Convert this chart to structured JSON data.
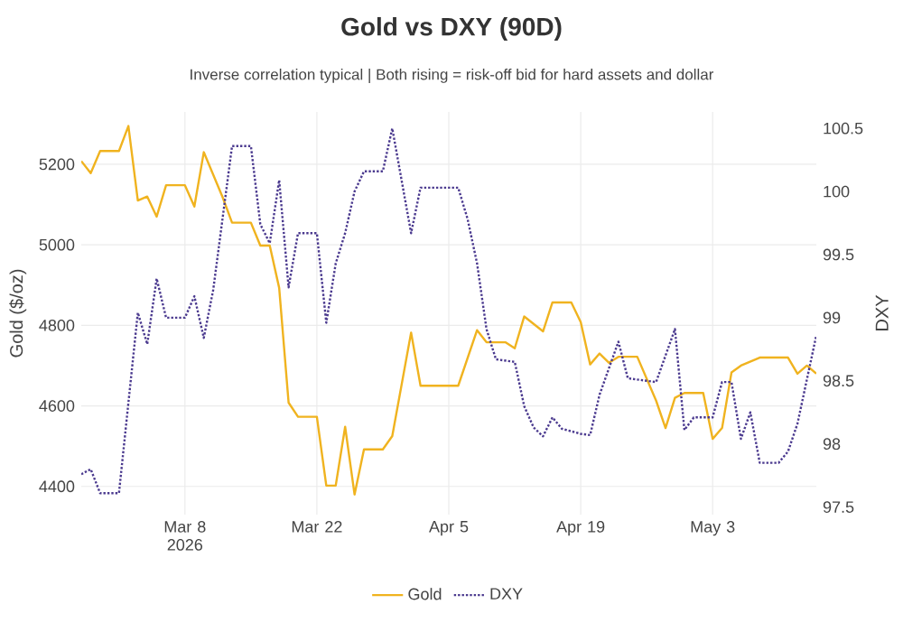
{
  "chart_data": {
    "type": "line",
    "title": "Gold vs DXY (90D)",
    "subtitle": "Inverse correlation typical | Both rising = risk-off bid for hard assets and dollar",
    "ylabel": "Gold ($/oz)",
    "y2label": "DXY",
    "xlim": [
      "2026-02-25",
      "2026-05-14"
    ],
    "xticks": [
      {
        "value": "2026-03-08",
        "label": "Mar 8 2026"
      },
      {
        "value": "2026-03-22",
        "label": "Mar 22"
      },
      {
        "value": "2026-04-05",
        "label": "Apr 5"
      },
      {
        "value": "2026-04-19",
        "label": "Apr 19"
      },
      {
        "value": "2026-05-03",
        "label": "May 3"
      }
    ],
    "ylim": [
      4330,
      5330
    ],
    "yticks": [
      4400,
      4600,
      4800,
      5000,
      5200
    ],
    "y2lim": [
      97.44,
      100.63
    ],
    "y2ticks": [
      97.5,
      98,
      98.5,
      99,
      99.5,
      100,
      100.5
    ],
    "grid": true,
    "legend": "bottom",
    "series": [
      {
        "name": "Gold",
        "color": "#f0b31f",
        "line_style": "solid",
        "x": [
          "2026-02-25",
          "2026-02-26",
          "2026-02-27",
          "2026-03-01",
          "2026-03-02",
          "2026-03-03",
          "2026-03-04",
          "2026-03-05",
          "2026-03-06",
          "2026-03-08",
          "2026-03-09",
          "2026-03-10",
          "2026-03-12",
          "2026-03-13",
          "2026-03-15",
          "2026-03-16",
          "2026-03-17",
          "2026-03-18",
          "2026-03-19",
          "2026-03-20",
          "2026-03-22",
          "2026-03-23",
          "2026-03-24",
          "2026-03-25",
          "2026-03-26",
          "2026-03-27",
          "2026-03-29",
          "2026-03-30",
          "2026-04-01",
          "2026-04-02",
          "2026-04-06",
          "2026-04-08",
          "2026-04-09",
          "2026-04-11",
          "2026-04-12",
          "2026-04-13",
          "2026-04-15",
          "2026-04-16",
          "2026-04-18",
          "2026-04-19",
          "2026-04-20",
          "2026-04-21",
          "2026-04-22",
          "2026-04-23",
          "2026-04-25",
          "2026-04-27",
          "2026-04-28",
          "2026-04-29",
          "2026-04-30",
          "2026-05-02",
          "2026-05-03",
          "2026-05-04",
          "2026-05-05",
          "2026-05-06",
          "2026-05-08",
          "2026-05-11",
          "2026-05-12",
          "2026-05-13",
          "2026-05-14"
        ],
        "values": [
          5208,
          5178,
          5233,
          5233,
          5295,
          5110,
          5120,
          5070,
          5148,
          5148,
          5095,
          5230,
          5118,
          5055,
          5055,
          4998,
          4998,
          4893,
          4608,
          4573,
          4573,
          4402,
          4402,
          4548,
          4380,
          4492,
          4492,
          4525,
          4782,
          4650,
          4650,
          4788,
          4758,
          4758,
          4743,
          4822,
          4785,
          4857,
          4857,
          4808,
          4703,
          4730,
          4707,
          4722,
          4722,
          4613,
          4545,
          4620,
          4632,
          4632,
          4518,
          4545,
          4683,
          4700,
          4720,
          4720,
          4680,
          4700,
          4680
        ]
      },
      {
        "name": "DXY",
        "color": "#4b3a8f",
        "line_style": "dotted",
        "axis": "y2",
        "x": [
          "2026-02-25",
          "2026-02-26",
          "2026-02-27",
          "2026-03-01",
          "2026-03-03",
          "2026-03-04",
          "2026-03-05",
          "2026-03-06",
          "2026-03-08",
          "2026-03-09",
          "2026-03-10",
          "2026-03-11",
          "2026-03-13",
          "2026-03-15",
          "2026-03-16",
          "2026-03-17",
          "2026-03-18",
          "2026-03-19",
          "2026-03-20",
          "2026-03-22",
          "2026-03-23",
          "2026-03-24",
          "2026-03-25",
          "2026-03-26",
          "2026-03-27",
          "2026-03-29",
          "2026-03-30",
          "2026-04-01",
          "2026-04-02",
          "2026-04-06",
          "2026-04-07",
          "2026-04-08",
          "2026-04-09",
          "2026-04-10",
          "2026-04-12",
          "2026-04-13",
          "2026-04-14",
          "2026-04-15",
          "2026-04-16",
          "2026-04-17",
          "2026-04-19",
          "2026-04-20",
          "2026-04-21",
          "2026-04-23",
          "2026-04-24",
          "2026-04-26",
          "2026-04-27",
          "2026-04-29",
          "2026-04-30",
          "2026-05-01",
          "2026-05-03",
          "2026-05-04",
          "2026-05-05",
          "2026-05-06",
          "2026-05-07",
          "2026-05-08",
          "2026-05-10",
          "2026-05-11",
          "2026-05-12",
          "2026-05-14"
        ],
        "values": [
          97.76,
          97.8,
          97.61,
          97.61,
          99.04,
          98.79,
          99.31,
          99.0,
          99.0,
          99.17,
          98.84,
          99.22,
          100.36,
          100.36,
          99.74,
          99.59,
          100.09,
          99.24,
          99.67,
          99.67,
          98.96,
          99.43,
          99.67,
          100.0,
          100.16,
          100.16,
          100.5,
          99.67,
          100.03,
          100.03,
          99.78,
          99.43,
          98.91,
          98.67,
          98.65,
          98.3,
          98.13,
          98.06,
          98.21,
          98.12,
          98.08,
          98.07,
          98.39,
          98.81,
          98.52,
          98.5,
          98.49,
          98.91,
          98.11,
          98.21,
          98.21,
          98.49,
          98.49,
          98.04,
          98.25,
          97.85,
          97.85,
          97.94,
          98.16,
          98.86
        ]
      }
    ]
  }
}
